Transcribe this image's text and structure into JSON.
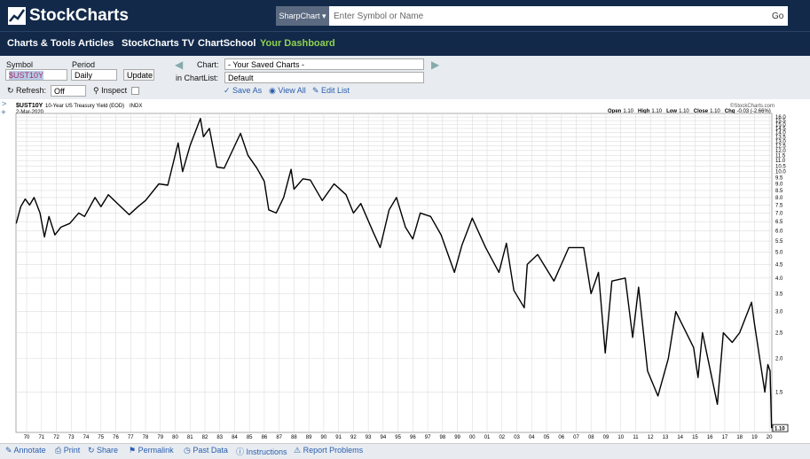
{
  "header": {
    "logo": "StockCharts",
    "chart_button": "SharpChart",
    "search_placeholder": "Enter Symbol or Name",
    "go": "Go"
  },
  "nav": [
    "Charts & Tools",
    "Articles",
    "StockCharts TV",
    "ChartSchool",
    "Your Dashboard"
  ],
  "controls": {
    "symbol_label": "Symbol",
    "symbol": "$UST10Y",
    "period_label": "Period",
    "period": "Daily",
    "update": "Update",
    "chart_label": "Chart:",
    "chart_select": "- Your Saved Charts -",
    "chartlist_label": "in ChartList:",
    "chartlist_select": "Default",
    "refresh_label": "Refresh:",
    "refresh": "Off",
    "inspect": "Inspect",
    "save_as": "Save As",
    "view_all": "View All",
    "edit_list": "Edit List"
  },
  "chart_data": {
    "type": "line",
    "title": "$UST10Y",
    "subtitle": "10-Year US Treasury Yield (EOD)",
    "exchange": "INDX",
    "date": "2-Mar-2020",
    "copyright": "©StockCharts.com",
    "stats": [
      {
        "label": "Open",
        "value": "1.10"
      },
      {
        "label": "High",
        "value": "1.10"
      },
      {
        "label": "Low",
        "value": "1.10"
      },
      {
        "label": "Close",
        "value": "1.10"
      },
      {
        "label": "Chg",
        "value": "-0.03 (-2.66%)"
      }
    ],
    "last_label": "1.10",
    "log_scale": true,
    "grid": true,
    "x": [
      1969.3,
      1969.6,
      1969.9,
      1970.2,
      1970.5,
      1970.9,
      1971.2,
      1971.5,
      1971.9,
      1972.3,
      1972.9,
      1973.5,
      1973.9,
      1974.6,
      1975.0,
      1975.5,
      1976.0,
      1976.9,
      1977.5,
      1978.0,
      1978.9,
      1979.5,
      1980.2,
      1980.5,
      1981.0,
      1981.7,
      1981.9,
      1982.3,
      1982.8,
      1983.3,
      1984.4,
      1984.9,
      1985.5,
      1986.0,
      1986.3,
      1986.8,
      1987.3,
      1987.8,
      1988.0,
      1988.6,
      1989.1,
      1989.9,
      1990.7,
      1991.5,
      1992.0,
      1992.5,
      1993.3,
      1993.8,
      1994.4,
      1994.9,
      1995.5,
      1996.0,
      1996.5,
      1997.2,
      1997.9,
      1998.8,
      1999.3,
      2000.0,
      2000.9,
      2001.8,
      2002.3,
      2002.8,
      2003.5,
      2003.7,
      2004.4,
      2005.5,
      2006.5,
      2007.5,
      2008.0,
      2008.5,
      2008.95,
      2009.4,
      2010.3,
      2010.8,
      2011.2,
      2011.8,
      2012.5,
      2013.2,
      2013.7,
      2014.9,
      2015.2,
      2015.5,
      2016.5,
      2016.9,
      2017.5,
      2018.0,
      2018.8,
      2019.0,
      2019.7,
      2019.9,
      2020.05,
      2020.15
    ],
    "series": [
      {
        "name": "$UST10Y",
        "color": "#000000",
        "values": [
          6.4,
          7.4,
          7.9,
          7.5,
          8.0,
          7.0,
          5.7,
          6.8,
          5.8,
          6.2,
          6.4,
          7.0,
          6.8,
          8.0,
          7.4,
          8.2,
          7.7,
          6.9,
          7.4,
          7.8,
          9.0,
          8.9,
          12.8,
          10.0,
          12.5,
          15.8,
          13.5,
          14.5,
          10.4,
          10.3,
          13.9,
          11.5,
          10.3,
          9.2,
          7.2,
          7.0,
          8.0,
          10.2,
          8.6,
          9.4,
          9.3,
          7.8,
          9.0,
          8.2,
          7.0,
          7.6,
          6.0,
          5.2,
          7.2,
          8.0,
          6.2,
          5.6,
          7.0,
          6.8,
          5.8,
          4.2,
          5.3,
          6.7,
          5.2,
          4.2,
          5.4,
          3.6,
          3.1,
          4.5,
          4.9,
          3.9,
          5.2,
          5.2,
          3.5,
          4.2,
          2.1,
          3.9,
          4.0,
          2.4,
          3.7,
          1.8,
          1.45,
          2.0,
          3.0,
          2.2,
          1.7,
          2.5,
          1.35,
          2.5,
          2.3,
          2.5,
          3.25,
          2.7,
          1.5,
          1.9,
          1.8,
          1.1
        ]
      }
    ],
    "xlim": [
      1969.28,
      2020.17
    ],
    "xticks": [
      {
        "value": 1970,
        "label": "70"
      },
      {
        "value": 1971,
        "label": "71"
      },
      {
        "value": 1972,
        "label": "72"
      },
      {
        "value": 1973,
        "label": "73"
      },
      {
        "value": 1974,
        "label": "74"
      },
      {
        "value": 1975,
        "label": "75"
      },
      {
        "value": 1976,
        "label": "76"
      },
      {
        "value": 1977,
        "label": "77"
      },
      {
        "value": 1978,
        "label": "78"
      },
      {
        "value": 1979,
        "label": "79"
      },
      {
        "value": 1980,
        "label": "80"
      },
      {
        "value": 1981,
        "label": "81"
      },
      {
        "value": 1982,
        "label": "82"
      },
      {
        "value": 1983,
        "label": "83"
      },
      {
        "value": 1984,
        "label": "84"
      },
      {
        "value": 1985,
        "label": "85"
      },
      {
        "value": 1986,
        "label": "86"
      },
      {
        "value": 1987,
        "label": "87"
      },
      {
        "value": 1988,
        "label": "88"
      },
      {
        "value": 1989,
        "label": "89"
      },
      {
        "value": 1990,
        "label": "90"
      },
      {
        "value": 1991,
        "label": "91"
      },
      {
        "value": 1992,
        "label": "92"
      },
      {
        "value": 1993,
        "label": "93"
      },
      {
        "value": 1994,
        "label": "94"
      },
      {
        "value": 1995,
        "label": "95"
      },
      {
        "value": 1996,
        "label": "96"
      },
      {
        "value": 1997,
        "label": "97"
      },
      {
        "value": 1998,
        "label": "98"
      },
      {
        "value": 1999,
        "label": "99"
      },
      {
        "value": 2000,
        "label": "00"
      },
      {
        "value": 2001,
        "label": "01"
      },
      {
        "value": 2002,
        "label": "02"
      },
      {
        "value": 2003,
        "label": "03"
      },
      {
        "value": 2004,
        "label": "04"
      },
      {
        "value": 2005,
        "label": "05"
      },
      {
        "value": 2006,
        "label": "06"
      },
      {
        "value": 2007,
        "label": "07"
      },
      {
        "value": 2008,
        "label": "08"
      },
      {
        "value": 2009,
        "label": "09"
      },
      {
        "value": 2010,
        "label": "10"
      },
      {
        "value": 2011,
        "label": "11"
      },
      {
        "value": 2012,
        "label": "12"
      },
      {
        "value": 2013,
        "label": "13"
      },
      {
        "value": 2014,
        "label": "14"
      },
      {
        "value": 2015,
        "label": "15"
      },
      {
        "value": 2016,
        "label": "16"
      },
      {
        "value": 2017,
        "label": "17"
      },
      {
        "value": 2018,
        "label": "18"
      },
      {
        "value": 2019,
        "label": "19"
      },
      {
        "value": 2020,
        "label": "20"
      }
    ],
    "ylim": [
      1.06,
      16.5
    ],
    "yticks": [
      {
        "value": 16,
        "label": "16.0"
      },
      {
        "value": 15.5,
        "label": "15.5"
      },
      {
        "value": 15,
        "label": "15.0"
      },
      {
        "value": 14.5,
        "label": "14.5"
      },
      {
        "value": 14,
        "label": "14.0"
      },
      {
        "value": 13.5,
        "label": "13.5"
      },
      {
        "value": 13,
        "label": "13.0"
      },
      {
        "value": 12.5,
        "label": "12.5"
      },
      {
        "value": 12,
        "label": "12.0"
      },
      {
        "value": 11.5,
        "label": "11.5"
      },
      {
        "value": 11,
        "label": "11.0"
      },
      {
        "value": 10.5,
        "label": "10.5"
      },
      {
        "value": 10,
        "label": "10.0"
      },
      {
        "value": 9.5,
        "label": "9.5"
      },
      {
        "value": 9,
        "label": "9.0"
      },
      {
        "value": 8.5,
        "label": "8.5"
      },
      {
        "value": 8,
        "label": "8.0"
      },
      {
        "value": 7.5,
        "label": "7.5"
      },
      {
        "value": 7,
        "label": "7.0"
      },
      {
        "value": 6.5,
        "label": "6.5"
      },
      {
        "value": 6,
        "label": "6.0"
      },
      {
        "value": 5.5,
        "label": "5.5"
      },
      {
        "value": 5,
        "label": "5.0"
      },
      {
        "value": 4.5,
        "label": "4.5"
      },
      {
        "value": 4,
        "label": "4.0"
      },
      {
        "value": 3.5,
        "label": "3.5"
      },
      {
        "value": 3,
        "label": "3.0"
      },
      {
        "value": 2.5,
        "label": "2.5"
      },
      {
        "value": 2,
        "label": "2.0"
      },
      {
        "value": 1.5,
        "label": "1.5"
      }
    ]
  },
  "footer": [
    "Annotate",
    "Print",
    "Share",
    "Permalink",
    "Past Data",
    "Instructions",
    "Report Problems"
  ]
}
